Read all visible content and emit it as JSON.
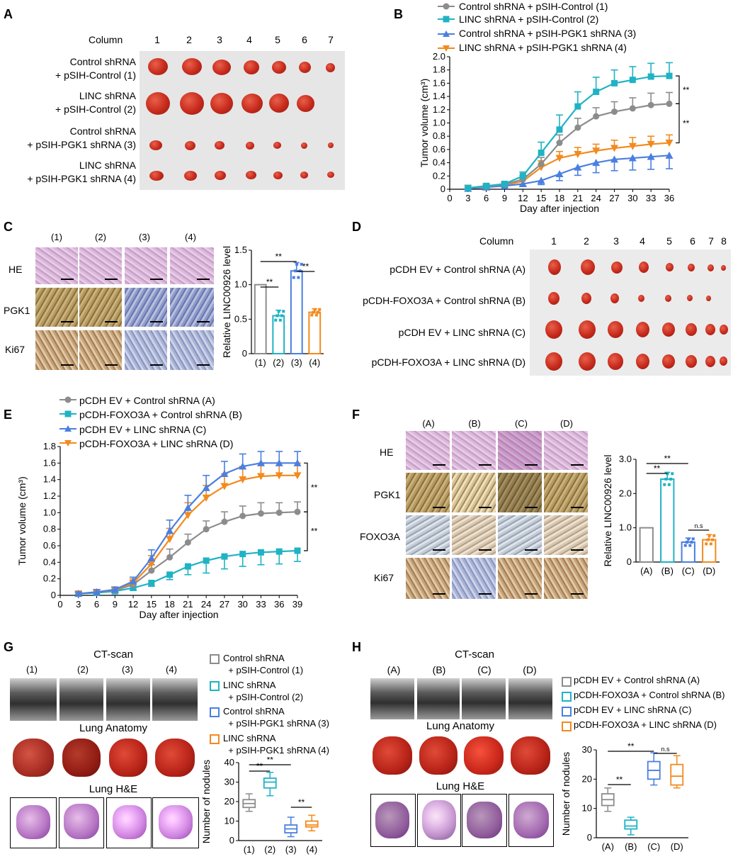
{
  "panel_labels": {
    "a": "A",
    "b": "B",
    "c": "C",
    "d": "D",
    "e": "E",
    "f": "F",
    "g": "G",
    "h": "H"
  },
  "panelA": {
    "column_label": "Column",
    "columns": [
      "1",
      "2",
      "3",
      "4",
      "5",
      "6",
      "7"
    ],
    "rows": [
      {
        "l1": "Control shRNA",
        "l2": "+ pSIH-Control (1)"
      },
      {
        "l1": "LINC shRNA",
        "l2": "+ pSIH-Control (2)"
      },
      {
        "l1": "Control shRNA",
        "l2": "+ pSIH-PGK1 shRNA (3)"
      },
      {
        "l1": "LINC shRNA",
        "l2": "+ pSIH-PGK1 shRNA (4)"
      }
    ]
  },
  "panelC": {
    "cols": [
      "(1)",
      "(2)",
      "(3)",
      "(4)"
    ],
    "rows": [
      "HE",
      "PGK1",
      "Ki67"
    ]
  },
  "panelD": {
    "column_label": "Column",
    "columns": [
      "1",
      "2",
      "3",
      "4",
      "5",
      "6",
      "7",
      "8"
    ],
    "rows": [
      "pCDH EV + Control shRNA (A)",
      "pCDH-FOXO3A + Control shRNA (B)",
      "pCDH EV + LINC shRNA (C)",
      "pCDH-FOXO3A + LINC shRNA (D)"
    ]
  },
  "panelF": {
    "cols": [
      "(A)",
      "(B)",
      "(C)",
      "(D)"
    ],
    "rows": [
      "HE",
      "PGK1",
      "FOXO3A",
      "Ki67"
    ]
  },
  "panelG": {
    "ct": "CT-scan",
    "anatomy": "Lung Anatomy",
    "he": "Lung H&E",
    "cols": [
      "(1)",
      "(2)",
      "(3)",
      "(4)"
    ],
    "legend": [
      {
        "l1": "Control shRNA",
        "l2": "+ pSIH-Control (1)",
        "color": "#8c8c8c"
      },
      {
        "l1": "LINC shRNA",
        "l2": "+ pSIH-Control (2)",
        "color": "#1fb3c4"
      },
      {
        "l1": "Control shRNA",
        "l2": "+ pSIH-PGK1 shRNA (3)",
        "color": "#4a7fe0"
      },
      {
        "l1": "LINC shRNA",
        "l2": "+ pSIH-PGK1 shRNA (4)",
        "color": "#f28a1e"
      }
    ]
  },
  "panelH": {
    "ct": "CT-scan",
    "anatomy": "Lung Anatomy",
    "he": "Lung H&E",
    "cols": [
      "(A)",
      "(B)",
      "(C)",
      "(D)"
    ],
    "legend": [
      {
        "l1": "pCDH EV + Control shRNA (A)",
        "color": "#8c8c8c"
      },
      {
        "l1": "pCDH-FOXO3A + Control shRNA (B)",
        "color": "#1fb3c4"
      },
      {
        "l1": "pCDH EV + LINC shRNA (C)",
        "color": "#4a7fe0"
      },
      {
        "l1": "pCDH-FOXO3A + LINC shRNA (D)",
        "color": "#f28a1e"
      }
    ]
  },
  "chart_data": [
    {
      "id": "B",
      "type": "line",
      "xlabel": "Day after injection",
      "ylabel": "Tumor volume (cm³)",
      "x": [
        0,
        3,
        6,
        9,
        12,
        15,
        18,
        21,
        24,
        27,
        30,
        33,
        36
      ],
      "xticks": [
        "0",
        "3",
        "6",
        "9",
        "12",
        "15",
        "18",
        "21",
        "24",
        "27",
        "30",
        "33",
        "36"
      ],
      "ylim": [
        0,
        2.0
      ],
      "yticks": [
        "0",
        "0.2",
        "0.4",
        "0.6",
        "0.8",
        "1.0",
        "1.2",
        "1.4",
        "1.6",
        "1.8",
        "2.0"
      ],
      "significance": [
        "**",
        "**"
      ],
      "series": [
        {
          "name": "Control shRNA + pSIH-Control (1)",
          "color": "#8c8c8c",
          "marker": "circle",
          "x": [
            3,
            6,
            9,
            12,
            15,
            18,
            21,
            24,
            27,
            30,
            33,
            36
          ],
          "values": [
            0.02,
            0.04,
            0.07,
            0.15,
            0.38,
            0.7,
            0.93,
            1.1,
            1.17,
            1.22,
            1.27,
            1.29
          ],
          "err": [
            0.01,
            0.02,
            0.03,
            0.06,
            0.1,
            0.12,
            0.14,
            0.13,
            0.15,
            0.16,
            0.18,
            0.17
          ]
        },
        {
          "name": "LINC shRNA + pSIH-Control (2)",
          "color": "#1fb3c4",
          "marker": "square",
          "x": [
            3,
            6,
            9,
            12,
            15,
            18,
            21,
            24,
            27,
            30,
            33,
            36
          ],
          "values": [
            0.02,
            0.05,
            0.08,
            0.2,
            0.55,
            0.9,
            1.25,
            1.47,
            1.6,
            1.65,
            1.7,
            1.71
          ],
          "err": [
            0.01,
            0.02,
            0.03,
            0.06,
            0.16,
            0.22,
            0.22,
            0.22,
            0.2,
            0.2,
            0.2,
            0.2
          ]
        },
        {
          "name": "Control shRNA + pSIH-PGK1 shRNA (3)",
          "color": "#4a7fe0",
          "marker": "triangle",
          "x": [
            3,
            6,
            9,
            12,
            15,
            18,
            21,
            24,
            27,
            30,
            33,
            36
          ],
          "values": [
            0.01,
            0.03,
            0.05,
            0.08,
            0.13,
            0.23,
            0.33,
            0.4,
            0.45,
            0.47,
            0.49,
            0.51
          ],
          "err": [
            0.01,
            0.01,
            0.02,
            0.03,
            0.06,
            0.1,
            0.12,
            0.15,
            0.17,
            0.18,
            0.19,
            0.2
          ]
        },
        {
          "name": "LINC shRNA + pSIH-PGK1 shRNA (4)",
          "color": "#f28a1e",
          "marker": "triangle-down",
          "x": [
            3,
            6,
            9,
            12,
            15,
            18,
            21,
            24,
            27,
            30,
            33,
            36
          ],
          "values": [
            0.02,
            0.04,
            0.06,
            0.12,
            0.33,
            0.47,
            0.53,
            0.58,
            0.62,
            0.65,
            0.68,
            0.7
          ],
          "err": [
            0.01,
            0.02,
            0.03,
            0.05,
            0.1,
            0.1,
            0.1,
            0.1,
            0.12,
            0.13,
            0.12,
            0.12
          ]
        }
      ]
    },
    {
      "id": "C-bar",
      "type": "bar",
      "ylabel": "Relative LINC00926 level",
      "categories": [
        "(1)",
        "(2)",
        "(3)",
        "(4)"
      ],
      "values": [
        1.0,
        0.55,
        1.2,
        0.6
      ],
      "err": [
        0,
        0.08,
        0.12,
        0.05
      ],
      "ylim": [
        0,
        1.5
      ],
      "yticks": [
        "0",
        "0.5",
        "1.0",
        "1.5"
      ],
      "colors": [
        "#8c8c8c",
        "#1fb3c4",
        "#4a7fe0",
        "#f28a1e"
      ],
      "significance": [
        "**",
        "**",
        "**"
      ]
    },
    {
      "id": "E",
      "type": "line",
      "xlabel": "Day after injection",
      "ylabel": "Tumor volume (cm³)",
      "x": [
        0,
        3,
        6,
        9,
        12,
        15,
        18,
        21,
        24,
        27,
        30,
        33,
        36,
        39
      ],
      "xticks": [
        "0",
        "3",
        "6",
        "9",
        "12",
        "15",
        "18",
        "21",
        "24",
        "27",
        "30",
        "33",
        "36",
        "39"
      ],
      "ylim": [
        0,
        1.8
      ],
      "yticks": [
        "0",
        "0.2",
        "0.4",
        "0.6",
        "0.8",
        "1.0",
        "1.2",
        "1.4",
        "1.6",
        "1.8"
      ],
      "significance": [
        "**",
        "**"
      ],
      "series": [
        {
          "name": "pCDH EV + Control shRNA (A)",
          "color": "#8c8c8c",
          "marker": "circle",
          "x": [
            3,
            6,
            9,
            12,
            15,
            18,
            21,
            24,
            27,
            30,
            33,
            36,
            39
          ],
          "values": [
            0.02,
            0.04,
            0.06,
            0.13,
            0.3,
            0.46,
            0.64,
            0.8,
            0.89,
            0.96,
            0.99,
            1.0,
            1.01
          ],
          "err": [
            0.02,
            0.02,
            0.03,
            0.04,
            0.07,
            0.1,
            0.1,
            0.1,
            0.12,
            0.12,
            0.13,
            0.12,
            0.12
          ]
        },
        {
          "name": "pCDH-FOXO3A + Control shRNA (B)",
          "color": "#1fb3c4",
          "marker": "square",
          "x": [
            3,
            6,
            9,
            12,
            15,
            18,
            21,
            24,
            27,
            30,
            33,
            36,
            39
          ],
          "values": [
            0.02,
            0.03,
            0.05,
            0.09,
            0.15,
            0.25,
            0.35,
            0.42,
            0.47,
            0.5,
            0.52,
            0.53,
            0.54
          ],
          "err": [
            0.01,
            0.02,
            0.02,
            0.03,
            0.04,
            0.06,
            0.1,
            0.15,
            0.15,
            0.15,
            0.15,
            0.15,
            0.13
          ]
        },
        {
          "name": "pCDH EV + LINC shRNA (C)",
          "color": "#4a7fe0",
          "marker": "triangle",
          "x": [
            3,
            6,
            9,
            12,
            15,
            18,
            21,
            24,
            27,
            30,
            33,
            36,
            39
          ],
          "values": [
            0.02,
            0.04,
            0.07,
            0.17,
            0.45,
            0.78,
            1.06,
            1.3,
            1.47,
            1.56,
            1.6,
            1.6,
            1.6
          ],
          "err": [
            0.02,
            0.03,
            0.03,
            0.05,
            0.1,
            0.13,
            0.15,
            0.15,
            0.15,
            0.15,
            0.14,
            0.14,
            0.14
          ]
        },
        {
          "name": "pCDH-FOXO3A + LINC shRNA (D)",
          "color": "#f28a1e",
          "marker": "triangle-down",
          "x": [
            3,
            6,
            9,
            12,
            15,
            18,
            21,
            24,
            27,
            30,
            33,
            36,
            39
          ],
          "values": [
            0.02,
            0.04,
            0.07,
            0.15,
            0.38,
            0.68,
            0.97,
            1.18,
            1.32,
            1.4,
            1.44,
            1.45,
            1.45
          ],
          "err": [
            0.02,
            0.03,
            0.03,
            0.05,
            0.1,
            0.13,
            0.15,
            0.15,
            0.15,
            0.16,
            0.15,
            0.15,
            0.15
          ]
        }
      ]
    },
    {
      "id": "F-bar",
      "type": "bar",
      "ylabel": "Relative LINC00926 level",
      "categories": [
        "(A)",
        "(B)",
        "(C)",
        "(D)"
      ],
      "values": [
        1.0,
        2.42,
        0.58,
        0.65
      ],
      "err": [
        0,
        0.2,
        0.12,
        0.15
      ],
      "ylim": [
        0,
        3.0
      ],
      "yticks": [
        "0",
        "1.0",
        "2.0",
        "3.0"
      ],
      "colors": [
        "#8c8c8c",
        "#1fb3c4",
        "#4a7fe0",
        "#f28a1e"
      ],
      "significance": [
        "**",
        "**",
        "n.s"
      ]
    },
    {
      "id": "G-box",
      "type": "box",
      "ylabel": "Number of nodules",
      "categories": [
        "(1)",
        "(2)",
        "(3)",
        "(4)"
      ],
      "boxes": [
        [
          15,
          17,
          19,
          21,
          24
        ],
        [
          23,
          27,
          30,
          32,
          35
        ],
        [
          2,
          4,
          6,
          8,
          12
        ],
        [
          5,
          7,
          8,
          10,
          13
        ]
      ],
      "ylim": [
        0,
        40
      ],
      "yticks": [
        "0",
        "10",
        "20",
        "30",
        "40"
      ],
      "colors": [
        "#8c8c8c",
        "#1fb3c4",
        "#4a7fe0",
        "#f28a1e"
      ],
      "significance": [
        "**",
        "**",
        "**"
      ]
    },
    {
      "id": "H-box",
      "type": "box",
      "ylabel": "Number of nodules",
      "categories": [
        "(A)",
        "(B)",
        "(C)",
        "(D)"
      ],
      "boxes": [
        [
          9,
          11,
          13,
          15,
          17
        ],
        [
          1,
          3,
          4,
          6,
          7
        ],
        [
          18,
          20,
          23,
          26,
          29
        ],
        [
          17,
          18,
          21,
          25,
          28
        ]
      ],
      "ylim": [
        0,
        30
      ],
      "yticks": [
        "0",
        "10",
        "20",
        "30"
      ],
      "colors": [
        "#8c8c8c",
        "#1fb3c4",
        "#4a7fe0",
        "#f28a1e"
      ],
      "significance": [
        "**",
        "**",
        "n.s"
      ]
    }
  ]
}
